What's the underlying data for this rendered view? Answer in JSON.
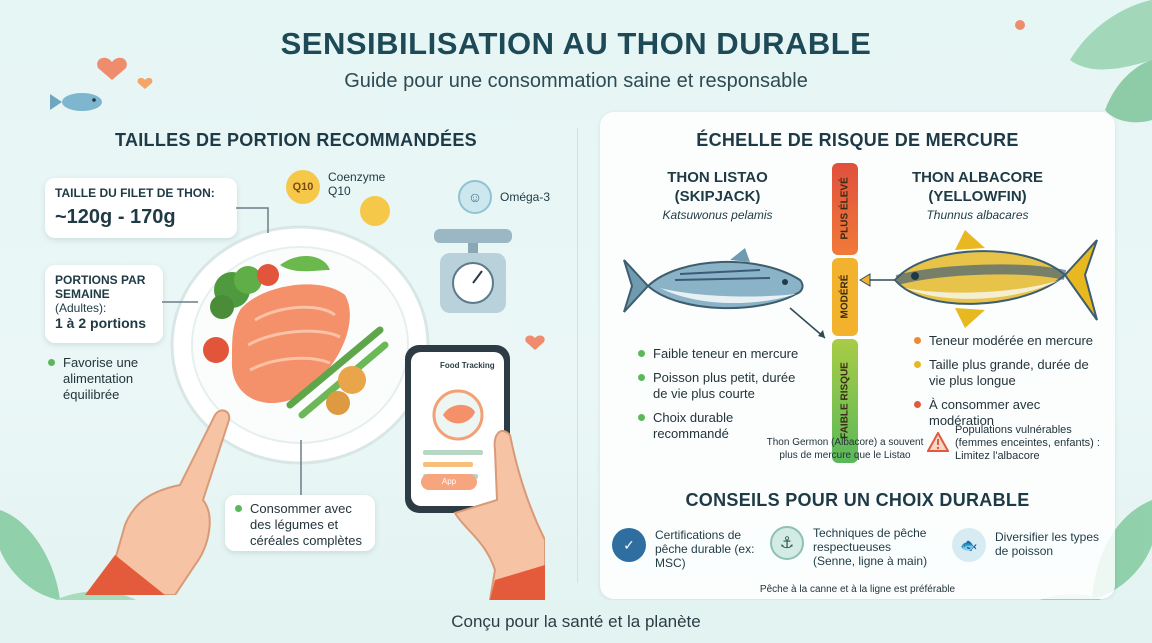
{
  "header": {
    "title": "SENSIBILISATION AU THON DURABLE",
    "subtitle": "Guide pour une consommation saine et responsable"
  },
  "left": {
    "heading": "TAILLES DE PORTION RECOMMANDÉES",
    "fillet_label": "TAILLE DU FILET DE THON:",
    "fillet_value": "~120g - 170g",
    "portions_label": "PORTIONS PAR SEMAINE",
    "portions_sub": "(Adultes):",
    "portions_value": "1 à 2 portions",
    "bullet_balanced": "Favorise une alimentation équilibrée",
    "bullet_vegetables": "Consommer avec des légumes et céréales complètes",
    "coenzyme": "Coenzyme Q10",
    "coenzyme_badge": "Q10",
    "omega": "Oméga-3",
    "phone_title": "Food Tracking",
    "phone_button": "App"
  },
  "mercury": {
    "heading": "ÉCHELLE DE RISQUE DE MERCURE",
    "skipjack_name": "THON LISTAO (SKIPJACK)",
    "skipjack_latin": "Katsuwonus pelamis",
    "yellowfin_name": "THON ALBACORE (YELLOWFIN)",
    "yellowfin_latin": "Thunnus albacares",
    "scale_high": "PLUS ÉLEVÉ",
    "scale_moderate": "MODÉRÉ",
    "scale_low": "FAIBLE RISQUE",
    "skipjack_points": [
      "Faible teneur en mercure",
      "Poisson plus petit, durée de vie plus courte",
      "Choix durable recommandé"
    ],
    "yellowfin_points": [
      "Teneur modérée en mercure",
      "Taille plus grande, durée de vie plus longue",
      "À consommer avec modération"
    ],
    "note": "Thon Germon (Albacore) a souvent plus de mercure que le Listao",
    "warning": "Populations vulnérables (femmes enceintes, enfants) : Limitez l'albacore",
    "colors": {
      "green": "#5bb85a",
      "yellow": "#e8b820",
      "orange": "#ef8a2e",
      "red": "#e05a3c"
    }
  },
  "tips": {
    "heading": "CONSEILS POUR UN CHOIX DURABLE",
    "tip1": "Certifications de pêche durable (ex: MSC)",
    "tip2_title": "Techniques de pêche respectueuses",
    "tip2_sub": "(Senne, ligne à main)",
    "tip3": "Diversifier les types de poisson",
    "note": "Pêche à la canne et à la ligne est préférable"
  },
  "footer": {
    "text": "Conçu pour la santé et la planète"
  }
}
